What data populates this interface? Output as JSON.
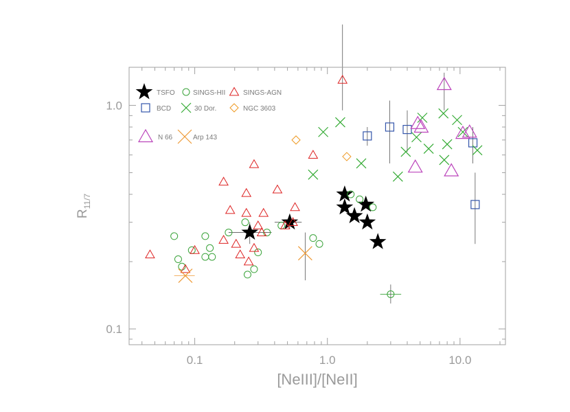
{
  "chart_data": {
    "type": "scatter",
    "title": "",
    "xlabel": "[NeIII]/[NeII]",
    "ylabel": "R",
    "ylabel_sub": "11/7",
    "xscale": "log",
    "yscale": "log",
    "xlim": [
      0.032,
      22
    ],
    "ylim": [
      0.085,
      1.48
    ],
    "xticks": [
      {
        "v": 0.1,
        "label": "0.1"
      },
      {
        "v": 1.0,
        "label": "1.0"
      },
      {
        "v": 10.0,
        "label": "10.0"
      }
    ],
    "yticks": [
      {
        "v": 0.1,
        "label": "0.1"
      },
      {
        "v": 1.0,
        "label": "1.0"
      }
    ],
    "grid": false,
    "legend_position": "top-left",
    "colors": {
      "axis": "#a0a0a0",
      "tsfo": "#000000",
      "sings_hii": "#3aa33a",
      "sings_agn": "#dd2222",
      "bcd": "#3355aa",
      "dor30": "#33aa33",
      "ngc3603": "#ee9922",
      "n66": "#bb44bb",
      "arp143": "#ee9933",
      "errorbar": "#555555"
    },
    "series": [
      {
        "key": "tsfo",
        "name": "TSFO",
        "marker": "star",
        "points": [
          {
            "x": 0.26,
            "y": 0.27,
            "ex": [
              0.18,
              0.38
            ],
            "ey": [
              0.24,
              0.3
            ]
          },
          {
            "x": 0.52,
            "y": 0.3,
            "ex": [
              0.4,
              0.64
            ],
            "ey": [
              0.28,
              0.32
            ]
          },
          {
            "x": 1.35,
            "y": 0.4
          },
          {
            "x": 1.35,
            "y": 0.35
          },
          {
            "x": 1.6,
            "y": 0.32
          },
          {
            "x": 1.95,
            "y": 0.36
          },
          {
            "x": 2.0,
            "y": 0.3
          },
          {
            "x": 2.4,
            "y": 0.245
          }
        ]
      },
      {
        "key": "sings_hii",
        "name": "SINGS-HII",
        "marker": "circle",
        "points": [
          {
            "x": 0.07,
            "y": 0.26
          },
          {
            "x": 0.075,
            "y": 0.205
          },
          {
            "x": 0.08,
            "y": 0.19
          },
          {
            "x": 0.095,
            "y": 0.225
          },
          {
            "x": 0.12,
            "y": 0.26
          },
          {
            "x": 0.12,
            "y": 0.21
          },
          {
            "x": 0.13,
            "y": 0.23
          },
          {
            "x": 0.135,
            "y": 0.21
          },
          {
            "x": 0.18,
            "y": 0.27
          },
          {
            "x": 0.24,
            "y": 0.3
          },
          {
            "x": 0.25,
            "y": 0.175
          },
          {
            "x": 0.28,
            "y": 0.185
          },
          {
            "x": 0.3,
            "y": 0.22
          },
          {
            "x": 0.35,
            "y": 0.27
          },
          {
            "x": 0.45,
            "y": 0.29
          },
          {
            "x": 0.78,
            "y": 0.255
          },
          {
            "x": 0.87,
            "y": 0.24
          },
          {
            "x": 1.5,
            "y": 0.4
          },
          {
            "x": 1.75,
            "y": 0.38
          },
          {
            "x": 2.2,
            "y": 0.35
          },
          {
            "x": 3.0,
            "y": 0.143,
            "ex": [
              2.5,
              3.6
            ],
            "ey": [
              0.13,
              0.158
            ]
          }
        ]
      },
      {
        "key": "sings_agn",
        "name": "SINGS-AGN",
        "marker": "triangle",
        "points": [
          {
            "x": 0.046,
            "y": 0.215
          },
          {
            "x": 0.085,
            "y": 0.185
          },
          {
            "x": 0.1,
            "y": 0.225
          },
          {
            "x": 0.165,
            "y": 0.455
          },
          {
            "x": 0.165,
            "y": 0.25
          },
          {
            "x": 0.185,
            "y": 0.34
          },
          {
            "x": 0.205,
            "y": 0.24
          },
          {
            "x": 0.22,
            "y": 0.215
          },
          {
            "x": 0.245,
            "y": 0.405
          },
          {
            "x": 0.245,
            "y": 0.33
          },
          {
            "x": 0.255,
            "y": 0.2
          },
          {
            "x": 0.28,
            "y": 0.545
          },
          {
            "x": 0.28,
            "y": 0.23
          },
          {
            "x": 0.3,
            "y": 0.29
          },
          {
            "x": 0.32,
            "y": 0.27
          },
          {
            "x": 0.33,
            "y": 0.33
          },
          {
            "x": 0.42,
            "y": 0.42
          },
          {
            "x": 0.48,
            "y": 0.29
          },
          {
            "x": 0.55,
            "y": 0.3
          },
          {
            "x": 0.57,
            "y": 0.35
          },
          {
            "x": 0.78,
            "y": 0.6
          },
          {
            "x": 1.3,
            "y": 1.3,
            "ey": [
              0.95,
              2.3
            ]
          }
        ]
      },
      {
        "key": "bcd",
        "name": "BCD",
        "marker": "square",
        "points": [
          {
            "x": 2.0,
            "y": 0.73,
            "ey": [
              0.66,
              0.8
            ]
          },
          {
            "x": 2.95,
            "y": 0.8,
            "ey": [
              0.55,
              1.05
            ]
          },
          {
            "x": 4.0,
            "y": 0.78,
            "ey": [
              0.62,
              0.95
            ]
          },
          {
            "x": 12.5,
            "y": 0.68,
            "ey": [
              0.55,
              0.8
            ]
          },
          {
            "x": 13.0,
            "y": 0.36,
            "ey": [
              0.24,
              0.5
            ]
          }
        ]
      },
      {
        "key": "dor30",
        "name": "30 Dor.",
        "marker": "x",
        "points": [
          {
            "x": 0.78,
            "y": 0.49
          },
          {
            "x": 0.93,
            "y": 0.76
          },
          {
            "x": 1.25,
            "y": 0.84
          },
          {
            "x": 1.8,
            "y": 0.55
          },
          {
            "x": 3.4,
            "y": 0.48
          },
          {
            "x": 3.9,
            "y": 0.62
          },
          {
            "x": 4.7,
            "y": 0.72
          },
          {
            "x": 5.2,
            "y": 0.88
          },
          {
            "x": 5.8,
            "y": 0.64
          },
          {
            "x": 7.5,
            "y": 0.92
          },
          {
            "x": 7.6,
            "y": 0.57
          },
          {
            "x": 8.0,
            "y": 0.67
          },
          {
            "x": 9.5,
            "y": 0.86
          },
          {
            "x": 10.5,
            "y": 0.76
          },
          {
            "x": 13.5,
            "y": 0.63
          }
        ]
      },
      {
        "key": "ngc3603",
        "name": "NGC 3603",
        "marker": "diamond",
        "points": [
          {
            "x": 0.58,
            "y": 0.7
          },
          {
            "x": 1.4,
            "y": 0.59
          }
        ]
      },
      {
        "key": "n66",
        "name": "N 66",
        "marker": "triangle-big",
        "points": [
          {
            "x": 4.6,
            "y": 0.53
          },
          {
            "x": 4.8,
            "y": 0.83
          },
          {
            "x": 5.1,
            "y": 0.8
          },
          {
            "x": 7.6,
            "y": 1.24,
            "ey": [
              0.95,
              1.4
            ]
          },
          {
            "x": 8.6,
            "y": 0.51
          },
          {
            "x": 10.5,
            "y": 0.75
          },
          {
            "x": 11.8,
            "y": 0.76
          }
        ]
      },
      {
        "key": "arp143",
        "name": "Arp 143",
        "marker": "x-big",
        "points": [
          {
            "x": 0.085,
            "y": 0.173,
            "ex": [
              0.07,
              0.1
            ]
          },
          {
            "x": 0.68,
            "y": 0.218,
            "ey": [
              0.165,
              0.27
            ]
          }
        ]
      }
    ]
  }
}
